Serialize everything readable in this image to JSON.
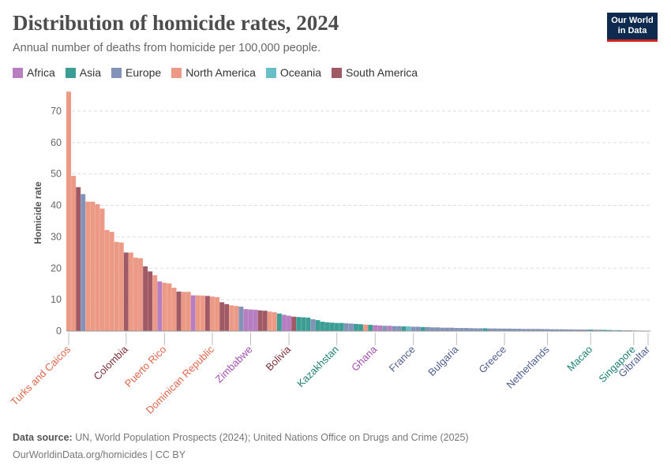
{
  "header": {
    "title": "Distribution of homicide rates, 2024",
    "subtitle": "Annual number of deaths from homicide per 100,000 people.",
    "logo_line1": "Our World",
    "logo_line2": "in Data"
  },
  "legend": [
    {
      "label": "Africa",
      "color": "#b77ec1"
    },
    {
      "label": "Asia",
      "color": "#3a9e94"
    },
    {
      "label": "Europe",
      "color": "#8392b8"
    },
    {
      "label": "North America",
      "color": "#ec9a85"
    },
    {
      "label": "Oceania",
      "color": "#69bfc7"
    },
    {
      "label": "South America",
      "color": "#a05a66"
    }
  ],
  "footer": {
    "source_label": "Data source:",
    "source_text": " UN, World Population Prospects (2024); United Nations Office on Drugs and Crime (2025)",
    "url_text": "OurWorldinData.org/homicides | CC BY"
  },
  "chart_data": {
    "type": "bar",
    "title": "Distribution of homicide rates, 2024",
    "ylabel": "Homicide rate",
    "xlabel": "",
    "ylim": [
      0,
      76
    ],
    "yticks": [
      0,
      10,
      20,
      30,
      40,
      50,
      60,
      70
    ],
    "grid": true,
    "region_colors": {
      "Africa": "#b77ec1",
      "Asia": "#3a9e94",
      "Europe": "#8392b8",
      "North America": "#ec9a85",
      "Oceania": "#69bfc7",
      "South America": "#a05a66"
    },
    "label_colors": {
      "Africa": "#a24eb0",
      "Asia": "#1d7f75",
      "Europe": "#4e5e8f",
      "North America": "#e0654a",
      "Oceania": "#2f9aa5",
      "South America": "#7c2d38"
    },
    "bars": [
      {
        "region": "North America",
        "value": 76.2,
        "label": "Turks and Caicos"
      },
      {
        "region": "North America",
        "value": 49.4
      },
      {
        "region": "South America",
        "value": 45.8
      },
      {
        "region": "Europe",
        "value": 43.6
      },
      {
        "region": "North America",
        "value": 41.2
      },
      {
        "region": "North America",
        "value": 41.2
      },
      {
        "region": "North America",
        "value": 40.4
      },
      {
        "region": "North America",
        "value": 39.0
      },
      {
        "region": "North America",
        "value": 32.2
      },
      {
        "region": "North America",
        "value": 31.6
      },
      {
        "region": "North America",
        "value": 28.4
      },
      {
        "region": "North America",
        "value": 28.2
      },
      {
        "region": "South America",
        "value": 25.0,
        "label": "Colombia"
      },
      {
        "region": "North America",
        "value": 25.0
      },
      {
        "region": "North America",
        "value": 23.4
      },
      {
        "region": "North America",
        "value": 23.2
      },
      {
        "region": "South America",
        "value": 20.6
      },
      {
        "region": "South America",
        "value": 19.0
      },
      {
        "region": "North America",
        "value": 17.8
      },
      {
        "region": "Africa",
        "value": 15.8
      },
      {
        "region": "North America",
        "value": 15.4,
        "label": "Puerto Rico"
      },
      {
        "region": "North America",
        "value": 15.2
      },
      {
        "region": "North America",
        "value": 13.8
      },
      {
        "region": "South America",
        "value": 12.6
      },
      {
        "region": "North America",
        "value": 12.5
      },
      {
        "region": "North America",
        "value": 12.5
      },
      {
        "region": "Africa",
        "value": 11.4
      },
      {
        "region": "North America",
        "value": 11.4
      },
      {
        "region": "North America",
        "value": 11.3
      },
      {
        "region": "South America",
        "value": 11.2
      },
      {
        "region": "North America",
        "value": 11.0,
        "label": "Dominican Republic"
      },
      {
        "region": "North America",
        "value": 10.8
      },
      {
        "region": "South America",
        "value": 9.2
      },
      {
        "region": "South America",
        "value": 8.6
      },
      {
        "region": "North America",
        "value": 8.2
      },
      {
        "region": "North America",
        "value": 8.0
      },
      {
        "region": "Europe",
        "value": 7.8
      },
      {
        "region": "Africa",
        "value": 7.0
      },
      {
        "region": "Africa",
        "value": 6.9,
        "label": "Zimbabwe"
      },
      {
        "region": "Africa",
        "value": 6.8
      },
      {
        "region": "South America",
        "value": 6.6
      },
      {
        "region": "South America",
        "value": 6.5
      },
      {
        "region": "North America",
        "value": 6.2
      },
      {
        "region": "North America",
        "value": 6.0
      },
      {
        "region": "Asia",
        "value": 5.6
      },
      {
        "region": "Africa",
        "value": 5.2
      },
      {
        "region": "Africa",
        "value": 4.9,
        "label": "Bolivia",
        "label_region": "South America"
      },
      {
        "region": "South America",
        "value": 4.6
      },
      {
        "region": "Asia",
        "value": 4.5
      },
      {
        "region": "Asia",
        "value": 4.4
      },
      {
        "region": "Asia",
        "value": 4.3
      },
      {
        "region": "Europe",
        "value": 3.8
      },
      {
        "region": "Asia",
        "value": 3.5
      },
      {
        "region": "Asia",
        "value": 3.0
      },
      {
        "region": "Asia",
        "value": 2.8
      },
      {
        "region": "Asia",
        "value": 2.7
      },
      {
        "region": "Asia",
        "value": 2.6,
        "label": "Kazakhstan"
      },
      {
        "region": "Asia",
        "value": 2.6
      },
      {
        "region": "Europe",
        "value": 2.5
      },
      {
        "region": "Europe",
        "value": 2.4
      },
      {
        "region": "Asia",
        "value": 2.3
      },
      {
        "region": "Asia",
        "value": 2.2
      },
      {
        "region": "North America",
        "value": 2.1
      },
      {
        "region": "Asia",
        "value": 2.0
      },
      {
        "region": "Africa",
        "value": 1.9,
        "label": "Ghana"
      },
      {
        "region": "Africa",
        "value": 1.8
      },
      {
        "region": "Europe",
        "value": 1.7
      },
      {
        "region": "Africa",
        "value": 1.7
      },
      {
        "region": "Europe",
        "value": 1.6
      },
      {
        "region": "Europe",
        "value": 1.6
      },
      {
        "region": "Asia",
        "value": 1.5
      },
      {
        "region": "Oceania",
        "value": 1.5
      },
      {
        "region": "Europe",
        "value": 1.4,
        "label": "France"
      },
      {
        "region": "Europe",
        "value": 1.4
      },
      {
        "region": "Asia",
        "value": 1.3
      },
      {
        "region": "Europe",
        "value": 1.3
      },
      {
        "region": "Europe",
        "value": 1.2
      },
      {
        "region": "Europe",
        "value": 1.2
      },
      {
        "region": "Europe",
        "value": 1.1
      },
      {
        "region": "Europe",
        "value": 1.1
      },
      {
        "region": "Europe",
        "value": 1.1
      },
      {
        "region": "Europe",
        "value": 1.0,
        "label": "Bulgaria"
      },
      {
        "region": "Europe",
        "value": 1.0
      },
      {
        "region": "Europe",
        "value": 1.0
      },
      {
        "region": "Europe",
        "value": 0.95
      },
      {
        "region": "Europe",
        "value": 0.9
      },
      {
        "region": "Europe",
        "value": 0.9
      },
      {
        "region": "Asia",
        "value": 0.9
      },
      {
        "region": "Europe",
        "value": 0.85
      },
      {
        "region": "Europe",
        "value": 0.85
      },
      {
        "region": "Europe",
        "value": 0.8
      },
      {
        "region": "Europe",
        "value": 0.8,
        "label": "Greece"
      },
      {
        "region": "Europe",
        "value": 0.8
      },
      {
        "region": "Europe",
        "value": 0.75
      },
      {
        "region": "Europe",
        "value": 0.75
      },
      {
        "region": "Europe",
        "value": 0.7
      },
      {
        "region": "Europe",
        "value": 0.7
      },
      {
        "region": "Europe",
        "value": 0.7
      },
      {
        "region": "Europe",
        "value": 0.7
      },
      {
        "region": "Europe",
        "value": 0.65
      },
      {
        "region": "Europe",
        "value": 0.65,
        "label": "Netherlands"
      },
      {
        "region": "Europe",
        "value": 0.6
      },
      {
        "region": "Europe",
        "value": 0.6
      },
      {
        "region": "Europe",
        "value": 0.6
      },
      {
        "region": "Europe",
        "value": 0.55
      },
      {
        "region": "Europe",
        "value": 0.55
      },
      {
        "region": "Europe",
        "value": 0.5
      },
      {
        "region": "Europe",
        "value": 0.5
      },
      {
        "region": "Europe",
        "value": 0.5
      },
      {
        "region": "Asia",
        "value": 0.5,
        "label": "Macao"
      },
      {
        "region": "Europe",
        "value": 0.45
      },
      {
        "region": "Europe",
        "value": 0.45
      },
      {
        "region": "Asia",
        "value": 0.4
      },
      {
        "region": "Asia",
        "value": 0.35
      },
      {
        "region": "Europe",
        "value": 0.3
      },
      {
        "region": "Asia",
        "value": 0.3
      },
      {
        "region": "Europe",
        "value": 0.25
      },
      {
        "region": "Europe",
        "value": 0.25
      },
      {
        "region": "Asia",
        "value": 0.2,
        "label": "Singapore"
      },
      {
        "region": "Europe",
        "value": 0.15
      },
      {
        "region": "Europe",
        "value": 0.1
      },
      {
        "region": "Europe",
        "value": 0.0,
        "label": "Gibraltar"
      }
    ]
  }
}
